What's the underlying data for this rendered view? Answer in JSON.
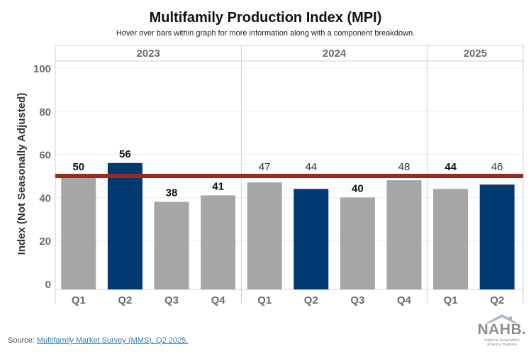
{
  "title": "Multifamily Production Index (MPI)",
  "subtitle": "Hover over bars within graph for more information along with a component breakdown.",
  "source": {
    "prefix": "Source: ",
    "link_text": "Multifamily Market Survey (MMS), Q2 2025."
  },
  "logo": {
    "text": "NAHB.",
    "sub1": "National Association",
    "sub2": "of Home Builders"
  },
  "colors": {
    "gray_bar": "#a6a6a6",
    "blue_bar": "#003a70",
    "reference_line": "#9b2a1e",
    "axis_text": "#6b6b6b"
  },
  "chart_data": {
    "type": "bar",
    "title": "Multifamily Production Index (MPI)",
    "ylabel": "Index (Not Seasonally Adjusted)",
    "ylim": [
      0,
      100
    ],
    "yticks": [
      0,
      20,
      40,
      60,
      80,
      100
    ],
    "reference_line": 50,
    "grid": true,
    "groups": [
      {
        "label": "2023",
        "categories": [
          "Q1",
          "Q2",
          "Q3",
          "Q4"
        ],
        "values": [
          50,
          56,
          38,
          41
        ],
        "highlight": [
          false,
          true,
          false,
          false
        ],
        "bold_labels": [
          true,
          true,
          true,
          true
        ]
      },
      {
        "label": "2024",
        "categories": [
          "Q1",
          "Q2",
          "Q3",
          "Q4"
        ],
        "values": [
          47,
          44,
          40,
          48
        ],
        "highlight": [
          false,
          true,
          false,
          false
        ],
        "bold_labels": [
          false,
          false,
          true,
          false
        ]
      },
      {
        "label": "2025",
        "categories": [
          "Q1",
          "Q2"
        ],
        "values": [
          44,
          46
        ],
        "highlight": [
          false,
          true
        ],
        "bold_labels": [
          true,
          false
        ]
      }
    ]
  }
}
